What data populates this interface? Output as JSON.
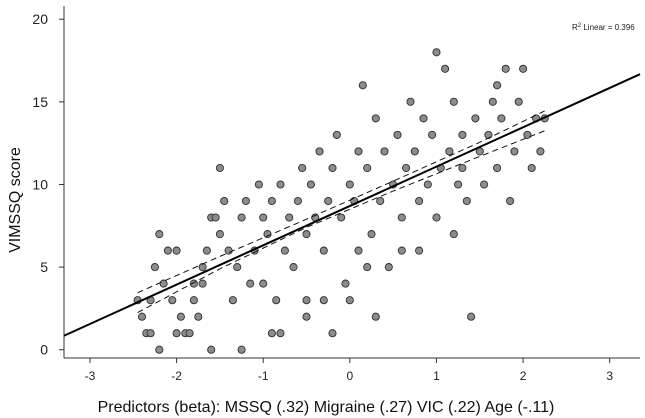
{
  "chart_data": {
    "type": "scatter",
    "title": "",
    "xlabel": "Predictors (beta): MSSQ (.32) Migraine (.27) VIC (.22) Age (-.11)",
    "ylabel": "VIMSSQ score",
    "xlim": [
      -3.3,
      3.35
    ],
    "ylim": [
      -0.5,
      20.8
    ],
    "x_ticks": [
      -3,
      -2,
      -1,
      0,
      1,
      2,
      3
    ],
    "x_tick_labels": [
      "-3",
      "-2",
      "-1",
      "0",
      "1",
      "2",
      "3"
    ],
    "y_ticks": [
      0,
      5,
      10,
      15,
      20
    ],
    "y_tick_labels": [
      "0",
      "5",
      "10",
      "15",
      "20"
    ],
    "grid": false,
    "annotation": {
      "r2_prefix": "R",
      "r2_sup": "2",
      "r2_text": " Linear = 0.396",
      "position": "top-right"
    },
    "fit_line": {
      "slope": 2.38,
      "intercept": 8.7
    },
    "ci_bands": [
      {
        "name": "upper",
        "points": [
          [
            -2.45,
            3.45
          ],
          [
            -1.5,
            5.65
          ],
          [
            -0.5,
            7.9
          ],
          [
            0.5,
            10.2
          ],
          [
            1.5,
            12.55
          ],
          [
            2.25,
            14.45
          ]
        ]
      },
      {
        "name": "lower",
        "points": [
          [
            -2.45,
            2.25
          ],
          [
            -1.5,
            4.9
          ],
          [
            -0.5,
            7.4
          ],
          [
            0.5,
            9.6
          ],
          [
            1.5,
            11.7
          ],
          [
            2.25,
            13.25
          ]
        ]
      }
    ],
    "points": [
      [
        -2.45,
        3
      ],
      [
        -2.4,
        2
      ],
      [
        -2.35,
        1
      ],
      [
        -2.3,
        3
      ],
      [
        -2.25,
        5
      ],
      [
        -2.2,
        7
      ],
      [
        -2.15,
        4
      ],
      [
        -2.1,
        6
      ],
      [
        -2.05,
        3
      ],
      [
        -2.0,
        6
      ],
      [
        -2.2,
        0
      ],
      [
        -2.0,
        1
      ],
      [
        -1.95,
        2
      ],
      [
        -1.9,
        1
      ],
      [
        -1.85,
        1
      ],
      [
        -1.8,
        3
      ],
      [
        -1.8,
        4
      ],
      [
        -1.75,
        2
      ],
      [
        -1.7,
        5
      ],
      [
        -1.7,
        4
      ],
      [
        -1.65,
        6
      ],
      [
        -1.6,
        8
      ],
      [
        -1.55,
        8
      ],
      [
        -1.5,
        7
      ],
      [
        -1.5,
        11
      ],
      [
        -1.45,
        9
      ],
      [
        -1.4,
        6
      ],
      [
        -1.35,
        3
      ],
      [
        -1.3,
        5
      ],
      [
        -1.25,
        8
      ],
      [
        -1.2,
        9
      ],
      [
        -1.15,
        4
      ],
      [
        -1.1,
        6
      ],
      [
        -1.05,
        10
      ],
      [
        -1.0,
        4
      ],
      [
        -1.0,
        8
      ],
      [
        -0.95,
        7
      ],
      [
        -0.9,
        9
      ],
      [
        -0.85,
        3
      ],
      [
        -0.8,
        10
      ],
      [
        -0.8,
        1
      ],
      [
        -0.75,
        6
      ],
      [
        -0.7,
        8
      ],
      [
        -0.65,
        5
      ],
      [
        -0.6,
        9
      ],
      [
        -0.55,
        11
      ],
      [
        -0.5,
        3
      ],
      [
        -0.5,
        7
      ],
      [
        -0.45,
        10
      ],
      [
        -0.4,
        8
      ],
      [
        -0.35,
        12
      ],
      [
        -0.3,
        6
      ],
      [
        -0.25,
        9
      ],
      [
        -0.2,
        11
      ],
      [
        -0.15,
        13
      ],
      [
        -0.1,
        8
      ],
      [
        -0.05,
        4
      ],
      [
        0.0,
        10
      ],
      [
        0.05,
        9
      ],
      [
        0.1,
        12
      ],
      [
        0.1,
        6
      ],
      [
        0.15,
        16
      ],
      [
        0.2,
        11
      ],
      [
        0.25,
        7
      ],
      [
        0.3,
        14
      ],
      [
        0.35,
        9
      ],
      [
        0.4,
        12
      ],
      [
        0.45,
        5
      ],
      [
        0.5,
        10
      ],
      [
        0.55,
        13
      ],
      [
        0.6,
        8
      ],
      [
        0.65,
        11
      ],
      [
        0.7,
        15
      ],
      [
        0.75,
        12
      ],
      [
        0.8,
        9
      ],
      [
        0.85,
        14
      ],
      [
        0.9,
        10
      ],
      [
        0.95,
        13
      ],
      [
        1.0,
        18
      ],
      [
        1.05,
        11
      ],
      [
        1.1,
        17
      ],
      [
        1.15,
        12
      ],
      [
        1.2,
        15
      ],
      [
        1.25,
        10
      ],
      [
        1.3,
        13
      ],
      [
        1.35,
        9
      ],
      [
        1.4,
        2
      ],
      [
        1.45,
        14
      ],
      [
        1.5,
        12
      ],
      [
        1.55,
        10
      ],
      [
        1.6,
        13
      ],
      [
        1.65,
        15
      ],
      [
        1.7,
        11
      ],
      [
        1.75,
        14
      ],
      [
        1.8,
        17
      ],
      [
        1.85,
        9
      ],
      [
        1.9,
        12
      ],
      [
        1.95,
        15
      ],
      [
        2.0,
        17
      ],
      [
        2.05,
        13
      ],
      [
        2.1,
        11
      ],
      [
        2.15,
        14
      ],
      [
        2.2,
        12
      ],
      [
        2.25,
        14
      ],
      [
        -1.6,
        0
      ],
      [
        -0.2,
        1
      ],
      [
        0.3,
        2
      ],
      [
        -0.3,
        3
      ],
      [
        0.6,
        6
      ],
      [
        1.2,
        7
      ],
      [
        -2.3,
        1
      ],
      [
        -1.25,
        0
      ],
      [
        -0.9,
        1
      ],
      [
        -0.5,
        2
      ],
      [
        0.0,
        3
      ],
      [
        0.2,
        5
      ],
      [
        0.8,
        6
      ],
      [
        1.0,
        8
      ],
      [
        1.3,
        11
      ],
      [
        1.7,
        16
      ]
    ]
  }
}
